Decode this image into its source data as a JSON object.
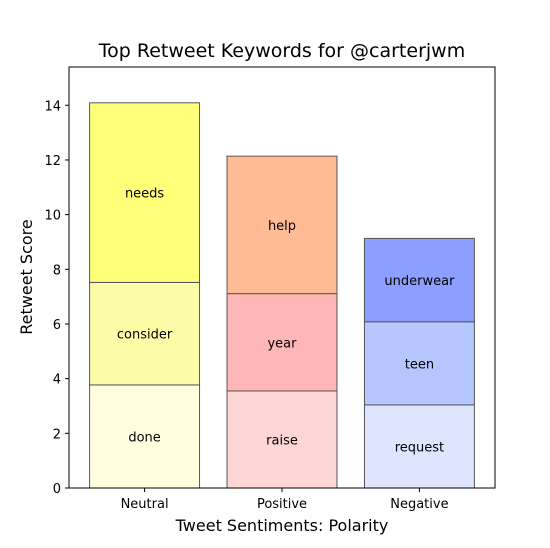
{
  "chart_data": {
    "type": "bar",
    "stacked": true,
    "title": "Top Retweet Keywords for @carterjwm",
    "xlabel": "Tweet Sentiments: Polarity",
    "ylabel": "Retweet Score",
    "ylim": [
      0,
      15.4
    ],
    "yticks": [
      0,
      2,
      4,
      6,
      8,
      10,
      12,
      14
    ],
    "ytick_labels": [
      "0",
      "2",
      "4",
      "6",
      "8",
      "10",
      "12",
      "14"
    ],
    "grid": false,
    "categories": [
      "Neutral",
      "Positive",
      "Negative"
    ],
    "bars": [
      {
        "category": "Neutral",
        "segments": [
          {
            "label": "done",
            "value": 3.77,
            "color": "#ffffe0"
          },
          {
            "label": "consider",
            "value": 3.75,
            "color": "#fcfca8"
          },
          {
            "label": "needs",
            "value": 6.57,
            "color": "#ffff7a"
          }
        ]
      },
      {
        "category": "Positive",
        "segments": [
          {
            "label": "raise",
            "value": 3.55,
            "color": "#ffd6d6"
          },
          {
            "label": "year",
            "value": 3.56,
            "color": "#ffb6b6"
          },
          {
            "label": "help",
            "value": 5.03,
            "color": "#ffbb93"
          }
        ]
      },
      {
        "category": "Negative",
        "segments": [
          {
            "label": "request",
            "value": 3.04,
            "color": "#dfe5ff"
          },
          {
            "label": "teen",
            "value": 3.04,
            "color": "#b6c6ff"
          },
          {
            "label": "underwear",
            "value": 3.05,
            "color": "#8c9eff"
          }
        ]
      }
    ]
  }
}
